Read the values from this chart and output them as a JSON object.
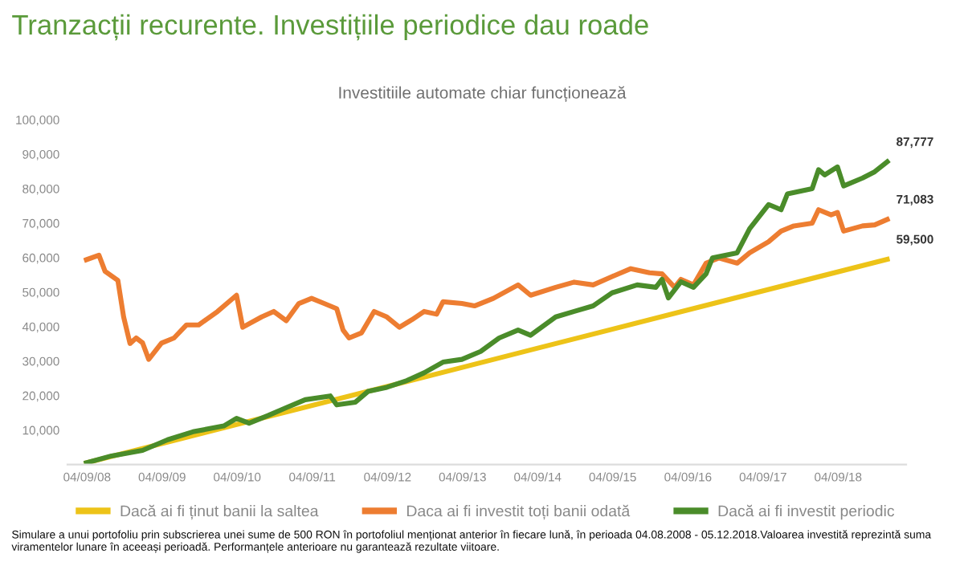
{
  "chart_data": {
    "type": "line",
    "title": "Tranzacții recurente. Investițiile periodice dau roade",
    "subtitle": "Investitiile automate chiar funcționează",
    "series": [
      {
        "name": "Dacă ai fi ținut banii la saltea",
        "color": "#edc318",
        "x": [
          "2008-09",
          "2010-09",
          "2012-09",
          "2014-09",
          "2016-09",
          "2019-05"
        ],
        "values": [
          500,
          11600,
          22600,
          33700,
          44800,
          59500
        ]
      },
      {
        "name": "Daca ai fi investit toți banii odată",
        "color": "#ed7d31",
        "x": [
          "2008-09",
          "2008-11",
          "2008-12",
          "2009-02",
          "2009-03",
          "2009-04",
          "2009-05",
          "2009-06",
          "2009-07",
          "2009-09",
          "2009-11",
          "2010-01",
          "2010-03",
          "2010-06",
          "2010-09",
          "2010-10",
          "2011-01",
          "2011-03",
          "2011-05",
          "2011-07",
          "2011-09",
          "2011-11",
          "2012-01",
          "2012-02",
          "2012-03",
          "2012-05",
          "2012-07",
          "2012-09",
          "2012-11",
          "2013-01",
          "2013-03",
          "2013-05",
          "2013-06",
          "2013-09",
          "2013-11",
          "2014-02",
          "2014-06",
          "2014-08",
          "2014-12",
          "2015-03",
          "2015-06",
          "2015-09",
          "2015-12",
          "2016-03",
          "2016-05",
          "2016-07",
          "2016-08",
          "2016-10",
          "2016-12",
          "2017-02",
          "2017-05",
          "2017-07",
          "2017-10",
          "2017-12",
          "2018-02",
          "2018-05",
          "2018-06",
          "2018-08",
          "2018-09",
          "2018-10",
          "2019-01",
          "2019-03",
          "2019-05"
        ],
        "values": [
          59400,
          60700,
          56000,
          53400,
          42800,
          35100,
          36700,
          35300,
          30500,
          35200,
          36700,
          40500,
          40500,
          44400,
          49100,
          39800,
          42800,
          44400,
          41700,
          46700,
          48200,
          46700,
          45200,
          39000,
          36700,
          38200,
          44400,
          42800,
          39800,
          42000,
          44400,
          43600,
          47200,
          46700,
          46000,
          48200,
          52100,
          49100,
          51400,
          52900,
          52100,
          54500,
          56800,
          55600,
          55300,
          51400,
          53700,
          52100,
          58400,
          59900,
          58400,
          61400,
          64600,
          67700,
          69200,
          70000,
          73900,
          72400,
          73100,
          67700,
          69200,
          69500,
          71083
        ]
      },
      {
        "name": "Dacă ai fi investit periodic",
        "color": "#4a8c2a",
        "x": [
          "2008-09",
          "2009-01",
          "2009-06",
          "2009-10",
          "2010-02",
          "2010-07",
          "2010-09",
          "2010-11",
          "2011-02",
          "2011-05",
          "2011-08",
          "2011-12",
          "2012-01",
          "2012-04",
          "2012-06",
          "2012-09",
          "2012-12",
          "2013-03",
          "2013-06",
          "2013-09",
          "2013-12",
          "2014-03",
          "2014-06",
          "2014-08",
          "2014-12",
          "2015-03",
          "2015-06",
          "2015-09",
          "2016-01",
          "2016-04",
          "2016-05",
          "2016-06",
          "2016-08",
          "2016-10",
          "2016-12",
          "2017-01",
          "2017-05",
          "2017-07",
          "2017-10",
          "2017-12",
          "2018-01",
          "2018-05",
          "2018-06",
          "2018-07",
          "2018-09",
          "2018-10",
          "2019-01",
          "2019-03",
          "2019-05"
        ],
        "values": [
          500,
          2500,
          4100,
          7200,
          9500,
          11200,
          13400,
          12000,
          14200,
          16500,
          18800,
          19900,
          17300,
          18100,
          21200,
          22400,
          24200,
          26600,
          29700,
          30500,
          32800,
          36700,
          39000,
          37500,
          42800,
          44400,
          46000,
          49800,
          52100,
          51400,
          53700,
          48300,
          53000,
          51400,
          55300,
          59900,
          61400,
          68400,
          75400,
          73900,
          78500,
          80000,
          85500,
          84000,
          86300,
          80800,
          83100,
          84900,
          87777
        ]
      }
    ],
    "annotations": [
      {
        "text": "87,777",
        "x": "2019-05",
        "y": 87777
      },
      {
        "text": "71,083",
        "x": "2019-05",
        "y": 71083
      },
      {
        "text": "59,500",
        "x": "2019-05",
        "y": 59500
      },
      "Simulare a unui portofoliu prin subscrierea unei sume de 500 RON în portofoliul menționat anterior în fiecare lună, în perioada 04.08.2008 - 05.12.2018.Valoarea investită reprezintă suma viramentelor lunare în aceeași perioadă. Performanțele anterioare nu garantează rezultate viitoare."
    ],
    "xlim": [
      "2008-06",
      "2019-08"
    ],
    "xticks": [
      {
        "value": "2008-09-04",
        "label": "04/09/08"
      },
      {
        "value": "2009-09-04",
        "label": "04/09/09"
      },
      {
        "value": "2010-09-04",
        "label": "04/09/10"
      },
      {
        "value": "2011-09-04",
        "label": "04/09/11"
      },
      {
        "value": "2012-09-04",
        "label": "04/09/12"
      },
      {
        "value": "2013-09-04",
        "label": "04/09/13"
      },
      {
        "value": "2014-09-04",
        "label": "04/09/14"
      },
      {
        "value": "2015-09-04",
        "label": "04/09/15"
      },
      {
        "value": "2016-09-04",
        "label": "04/09/16"
      },
      {
        "value": "2017-09-04",
        "label": "04/09/17"
      },
      {
        "value": "2018-09-04",
        "label": "04/09/18"
      }
    ],
    "ylim": [
      0,
      100000
    ],
    "yticks": [
      {
        "value": 10000,
        "label": "10,000"
      },
      {
        "value": 20000,
        "label": "20,000"
      },
      {
        "value": 30000,
        "label": "30,000"
      },
      {
        "value": 40000,
        "label": "40,000"
      },
      {
        "value": 50000,
        "label": "50,000"
      },
      {
        "value": 60000,
        "label": "60,000"
      },
      {
        "value": 70000,
        "label": "70,000"
      },
      {
        "value": 80000,
        "label": "80,000"
      },
      {
        "value": 90000,
        "label": "90,000"
      },
      {
        "value": 100000,
        "label": "100,000"
      }
    ],
    "legend": "bottom",
    "line_style": "solid"
  }
}
